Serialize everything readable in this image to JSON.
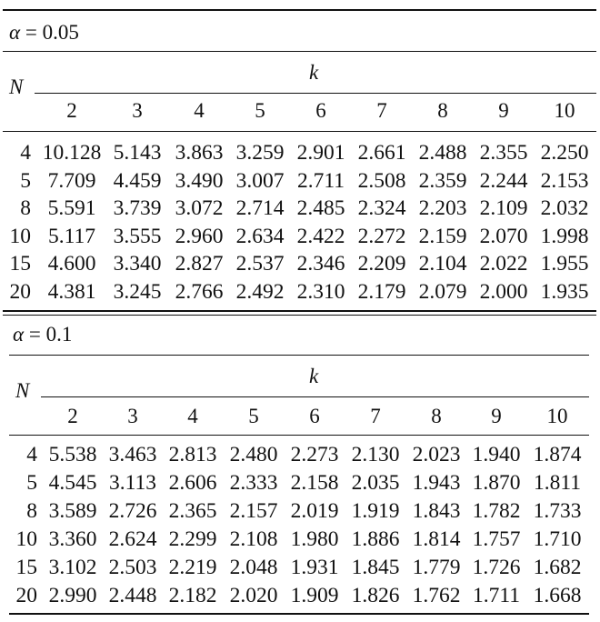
{
  "tables": [
    {
      "alpha_symbol": "α",
      "alpha_eq": " = ",
      "alpha_value": "0.05",
      "n_label": "N",
      "k_label": "k",
      "k_values": [
        "2",
        "3",
        "4",
        "5",
        "6",
        "7",
        "8",
        "9",
        "10"
      ],
      "rows": [
        {
          "n": "4",
          "values": [
            "10.128",
            "5.143",
            "3.863",
            "3.259",
            "2.901",
            "2.661",
            "2.488",
            "2.355",
            "2.250"
          ]
        },
        {
          "n": "5",
          "values": [
            "7.709",
            "4.459",
            "3.490",
            "3.007",
            "2.711",
            "2.508",
            "2.359",
            "2.244",
            "2.153"
          ]
        },
        {
          "n": "8",
          "values": [
            "5.591",
            "3.739",
            "3.072",
            "2.714",
            "2.485",
            "2.324",
            "2.203",
            "2.109",
            "2.032"
          ]
        },
        {
          "n": "10",
          "values": [
            "5.117",
            "3.555",
            "2.960",
            "2.634",
            "2.422",
            "2.272",
            "2.159",
            "2.070",
            "1.998"
          ]
        },
        {
          "n": "15",
          "values": [
            "4.600",
            "3.340",
            "2.827",
            "2.537",
            "2.346",
            "2.209",
            "2.104",
            "2.022",
            "1.955"
          ]
        },
        {
          "n": "20",
          "values": [
            "4.381",
            "3.245",
            "2.766",
            "2.492",
            "2.310",
            "2.179",
            "2.079",
            "2.000",
            "1.935"
          ]
        }
      ]
    },
    {
      "alpha_symbol": "α",
      "alpha_eq": " = ",
      "alpha_value": "0.1",
      "n_label": "N",
      "k_label": "k",
      "k_values": [
        "2",
        "3",
        "4",
        "5",
        "6",
        "7",
        "8",
        "9",
        "10"
      ],
      "rows": [
        {
          "n": "4",
          "values": [
            "5.538",
            "3.463",
            "2.813",
            "2.480",
            "2.273",
            "2.130",
            "2.023",
            "1.940",
            "1.874"
          ]
        },
        {
          "n": "5",
          "values": [
            "4.545",
            "3.113",
            "2.606",
            "2.333",
            "2.158",
            "2.035",
            "1.943",
            "1.870",
            "1.811"
          ]
        },
        {
          "n": "8",
          "values": [
            "3.589",
            "2.726",
            "2.365",
            "2.157",
            "2.019",
            "1.919",
            "1.843",
            "1.782",
            "1.733"
          ]
        },
        {
          "n": "10",
          "values": [
            "3.360",
            "2.624",
            "2.299",
            "2.108",
            "1.980",
            "1.886",
            "1.814",
            "1.757",
            "1.710"
          ]
        },
        {
          "n": "15",
          "values": [
            "3.102",
            "2.503",
            "2.219",
            "2.048",
            "1.931",
            "1.845",
            "1.779",
            "1.726",
            "1.682"
          ]
        },
        {
          "n": "20",
          "values": [
            "2.990",
            "2.448",
            "2.182",
            "2.020",
            "1.909",
            "1.826",
            "1.762",
            "1.711",
            "1.668"
          ]
        }
      ]
    }
  ]
}
